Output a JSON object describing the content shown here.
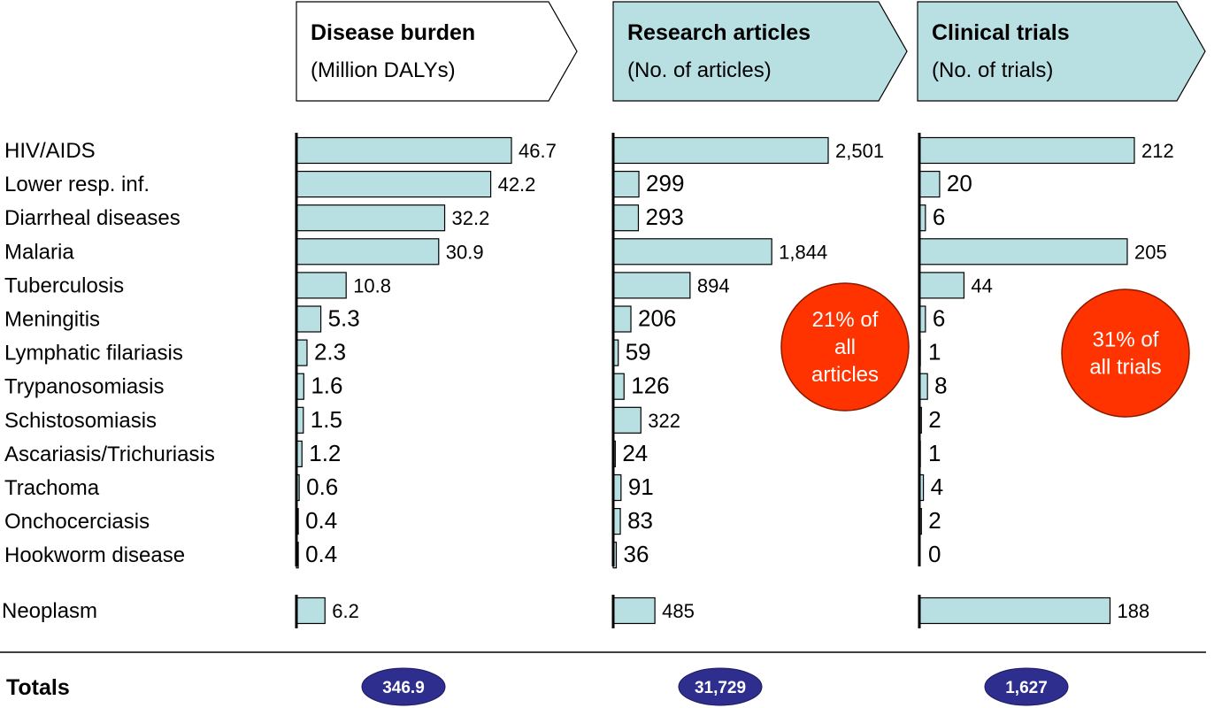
{
  "colors": {
    "bar_fill": "#b8e0e3",
    "bar_stroke": "#000000",
    "header_highlight_fill": "#b8e0e3",
    "header_plain_fill": "#ffffff",
    "callout_fill": "#ff3300",
    "callout_stroke": "#8a1a00",
    "totals_fill": "#2e2e8e"
  },
  "chart_data": {
    "type": "bar",
    "orientation": "horizontal",
    "categories": [
      "HIV/AIDS",
      "Lower resp. inf.",
      "Diarrheal diseases",
      "Malaria",
      "Tuberculosis",
      "Meningitis",
      "Lymphatic filariasis",
      "Trypanosomiasis",
      "Schistosomiasis",
      "Ascariasis/Trichuriasis",
      "Trachoma",
      "Onchocerciasis",
      "Hookworm disease"
    ],
    "extra_category": "Neoplasm",
    "series": [
      {
        "name": "Disease burden",
        "unit": "(Million DALYs)",
        "values": [
          46.7,
          42.2,
          32.2,
          30.9,
          10.8,
          5.3,
          2.3,
          1.6,
          1.5,
          1.2,
          0.6,
          0.4,
          0.4
        ],
        "labels": [
          "46.7",
          "42.2",
          "32.2",
          "30.9",
          "10.8",
          "5.3",
          "2.3",
          "1.6",
          "1.5",
          "1.2",
          "0.6",
          "0.4",
          "0.4"
        ],
        "extra_value": 6.2,
        "extra_label": "6.2",
        "total": "346.9",
        "highlight": false
      },
      {
        "name": "Research articles",
        "unit": "(No. of articles)",
        "values": [
          2501,
          299,
          293,
          1844,
          894,
          206,
          59,
          126,
          322,
          24,
          91,
          83,
          36
        ],
        "labels": [
          "2,501",
          "299",
          "293",
          "1,844",
          "894",
          "206",
          "59",
          "126",
          "322",
          "24",
          "91",
          "83",
          "36"
        ],
        "extra_value": 485,
        "extra_label": "485",
        "total": "31,729",
        "highlight": true,
        "callout": [
          "21% of",
          "all",
          "articles"
        ]
      },
      {
        "name": "Clinical trials",
        "unit": "(No. of trials)",
        "values": [
          212,
          20,
          6,
          205,
          44,
          6,
          1,
          8,
          2,
          1,
          4,
          2,
          0
        ],
        "labels": [
          "212",
          "20",
          "6",
          "205",
          "44",
          "6",
          "1",
          "8",
          "2",
          "1",
          "4",
          "2",
          "0"
        ],
        "extra_value": 188,
        "extra_label": "188",
        "total": "1,627",
        "highlight": true,
        "callout": [
          "31% of",
          "all trials"
        ]
      }
    ],
    "totals_label": "Totals"
  }
}
